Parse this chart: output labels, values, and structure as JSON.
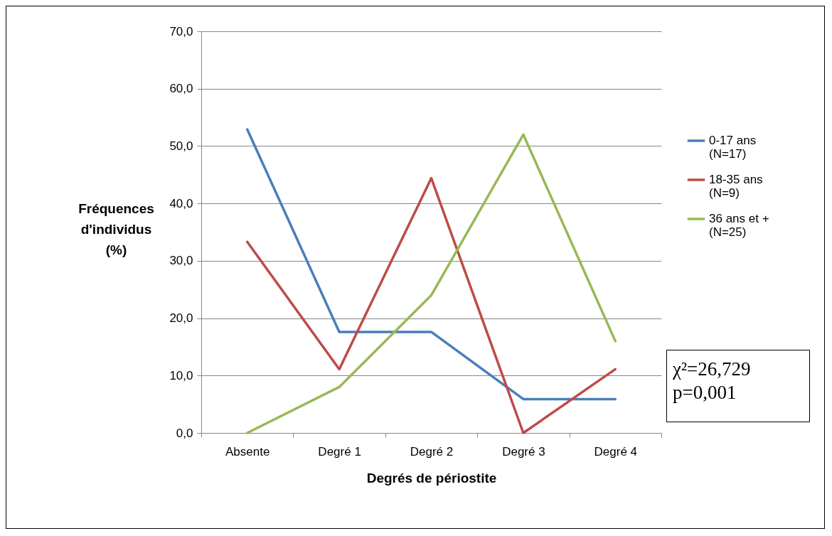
{
  "chart_data": {
    "type": "line",
    "xlabel": "Degrés de périostite",
    "ylabel": "Fréquences d'individus (%)",
    "categories": [
      "Absente",
      "Degré 1",
      "Degré 2",
      "Degré 3",
      "Degré 4"
    ],
    "series": [
      {
        "name": "0-17 ans (N=17)",
        "color": "#4a7ebb",
        "values": [
          52.9,
          17.6,
          17.6,
          5.9,
          5.9
        ]
      },
      {
        "name": "18-35 ans (N=9)",
        "color": "#be4b48",
        "values": [
          33.3,
          11.1,
          44.4,
          0,
          11.1
        ]
      },
      {
        "name": "36 ans et + (N=25)",
        "color": "#98b954",
        "values": [
          0,
          8,
          24,
          52,
          16
        ]
      }
    ],
    "ylim": [
      0,
      70
    ],
    "yticks": [
      {
        "value": 0,
        "label": "0,0"
      },
      {
        "value": 10,
        "label": "10,0"
      },
      {
        "value": 20,
        "label": "20,0"
      },
      {
        "value": 30,
        "label": "30,0"
      },
      {
        "value": 40,
        "label": "40,0"
      },
      {
        "value": 50,
        "label": "50,0"
      },
      {
        "value": 60,
        "label": "60,0"
      },
      {
        "value": 70,
        "label": "70,0"
      }
    ],
    "grid": "y",
    "legend": "right",
    "marker": "none",
    "line_style": "solid",
    "annotations": [
      "χ²=26,729",
      "p=0,001"
    ]
  }
}
